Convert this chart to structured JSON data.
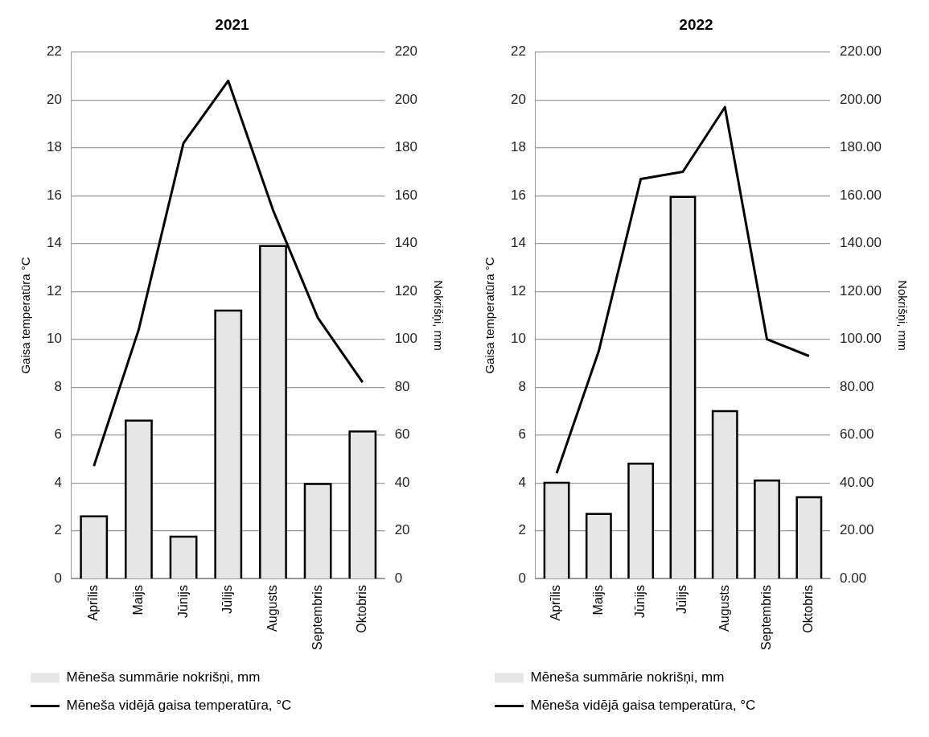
{
  "chart_data": [
    {
      "type": "bar",
      "title": "2021",
      "ylabel": "Gaisa temperatūra °C",
      "y2label": "Nokrišņi, mm",
      "categories": [
        "Aprīlis",
        "Maijs",
        "Jūnijs",
        "Jūlijs",
        "Augusts",
        "Septembris",
        "Oktobris"
      ],
      "series": [
        {
          "name": "Mēneša summārie nokrišņi, mm",
          "axis": "y2",
          "color": "#e6e6e6",
          "values": [
            26,
            66,
            17.5,
            112,
            139,
            39.5,
            61.5
          ]
        },
        {
          "name": "Mēneša vidējā gaisa temperatūra, °C",
          "type": "line",
          "axis": "y",
          "color": "#000000",
          "values": [
            4.7,
            10.4,
            18.2,
            20.8,
            15.4,
            10.9,
            8.2
          ]
        }
      ],
      "ylim": [
        0,
        22
      ],
      "yticks": [
        0,
        2,
        4,
        6,
        8,
        10,
        12,
        14,
        16,
        18,
        20,
        22
      ],
      "y2lim": [
        0,
        220
      ],
      "y2ticks": [
        0,
        20,
        40,
        60,
        80,
        100,
        120,
        140,
        160,
        180,
        200,
        220
      ],
      "grid": "y",
      "legend": "bottom"
    },
    {
      "type": "bar",
      "title": "2022",
      "ylabel": "Gaisa temperatūra °C",
      "y2label": "Nokrišņi, mm",
      "categories": [
        "Aprīlis",
        "Maijs",
        "Jūnijs",
        "Jūlijs",
        "Augusts",
        "Septembris",
        "Oktobris"
      ],
      "series": [
        {
          "name": "Mēneša summārie nokrišņi, mm",
          "axis": "y2",
          "color": "#e6e6e6",
          "values": [
            40,
            27,
            48,
            159.5,
            70,
            41,
            34
          ]
        },
        {
          "name": "Mēneša vidējā gaisa temperatūra, °C",
          "type": "line",
          "axis": "y",
          "color": "#000000",
          "values": [
            4.4,
            9.5,
            16.7,
            17.0,
            19.7,
            10.0,
            9.3
          ]
        }
      ],
      "ylim": [
        0,
        22
      ],
      "yticks": [
        0,
        2,
        4,
        6,
        8,
        10,
        12,
        14,
        16,
        18,
        20,
        22
      ],
      "y2lim": [
        0,
        220
      ],
      "y2ticks": [
        {
          "value": 0,
          "label": "0.00"
        },
        {
          "value": 20,
          "label": "20.00"
        },
        {
          "value": 40,
          "label": "40.00"
        },
        {
          "value": 60,
          "label": "60.00"
        },
        {
          "value": 80,
          "label": "80.00"
        },
        {
          "value": 100,
          "label": "100.00"
        },
        {
          "value": 120,
          "label": "120.00"
        },
        {
          "value": 140,
          "label": "140.00"
        },
        {
          "value": 160,
          "label": "160.00"
        },
        {
          "value": 180,
          "label": "180.00"
        },
        {
          "value": 200,
          "label": "200.00"
        },
        {
          "value": 220,
          "label": "220.00"
        }
      ],
      "grid": "y",
      "legend": "bottom"
    }
  ]
}
